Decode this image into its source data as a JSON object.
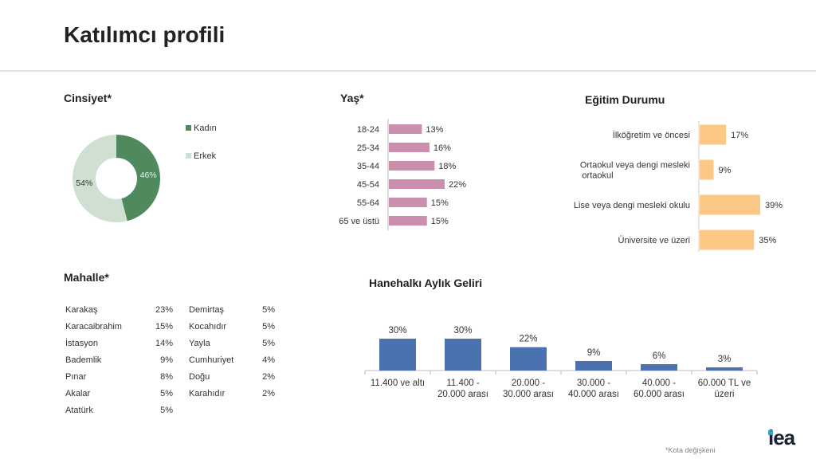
{
  "title": "Katılımcı profili",
  "footnote": "*Kota değişkeni",
  "logo": "iea",
  "colors": {
    "kadin": "#4f8a5f",
    "erkek": "#cfe0d2",
    "age_bar": "#c98fac",
    "edu_bar": "#fbc985",
    "income_bar": "#4a72b0"
  },
  "chart_data": [
    {
      "id": "cinsiyet",
      "type": "pie",
      "title": "Cinsiyet*",
      "labels": [
        "Kadın",
        "Erkek"
      ],
      "values": [
        46,
        54
      ],
      "value_labels": [
        "46%",
        "54%"
      ],
      "legend": "right"
    },
    {
      "id": "yas",
      "type": "bar",
      "orientation": "horizontal",
      "title": "Yaş*",
      "categories": [
        "18-24",
        "25-34",
        "35-44",
        "45-54",
        "55-64",
        "65 ve üstü"
      ],
      "values": [
        13,
        16,
        18,
        22,
        15,
        15
      ],
      "value_labels": [
        "13%",
        "16%",
        "18%",
        "22%",
        "15%",
        "15%"
      ]
    },
    {
      "id": "egitim",
      "type": "bar",
      "orientation": "horizontal",
      "title": "Eğitim Durumu",
      "categories": [
        "İlköğretim ve öncesi",
        "Ortaokul veya dengi mesleki ortaokul",
        "Lise veya dengi mesleki okulu",
        "Üniversite ve üzeri"
      ],
      "category_lines": [
        [
          "İlköğretim ve öncesi"
        ],
        [
          "Ortaokul veya dengi mesleki",
          "ortaokul"
        ],
        [
          "Lise veya dengi mesleki okulu"
        ],
        [
          "Üniversite ve üzeri"
        ]
      ],
      "values": [
        17,
        9,
        39,
        35
      ],
      "value_labels": [
        "17%",
        "9%",
        "39%",
        "35%"
      ]
    },
    {
      "id": "gelir",
      "type": "bar",
      "orientation": "vertical",
      "title": "Hanehalkı Aylık Geliri",
      "categories": [
        "11.400 ve altı",
        "11.400 - 20.000 arası",
        "20.000 - 30.000 arası",
        "30.000 - 40.000 arası",
        "40.000 - 60.000 arası",
        "60.000 TL ve üzeri"
      ],
      "category_lines": [
        [
          "11.400 ve altı"
        ],
        [
          "11.400 -",
          "20.000 arası"
        ],
        [
          "20.000 -",
          "30.000 arası"
        ],
        [
          "30.000 -",
          "40.000 arası"
        ],
        [
          "40.000 -",
          "60.000 arası"
        ],
        [
          "60.000 TL ve",
          "üzeri"
        ]
      ],
      "values": [
        30,
        30,
        22,
        9,
        6,
        3
      ],
      "value_labels": [
        "30%",
        "30%",
        "22%",
        "9%",
        "6%",
        "3%"
      ]
    },
    {
      "id": "mahalle",
      "type": "table",
      "title": "Mahalle*",
      "columns": [
        [
          {
            "name": "Karakaş",
            "pct": "23%"
          },
          {
            "name": "Karacaibrahim",
            "pct": "15%"
          },
          {
            "name": "İstasyon",
            "pct": "14%"
          },
          {
            "name": "Bademlik",
            "pct": "9%"
          },
          {
            "name": "Pınar",
            "pct": "8%"
          },
          {
            "name": "Akalar",
            "pct": "5%"
          },
          {
            "name": "Atatürk",
            "pct": "5%"
          }
        ],
        [
          {
            "name": "Demirtaş",
            "pct": "5%"
          },
          {
            "name": "Kocahıdır",
            "pct": "5%"
          },
          {
            "name": "Yayla",
            "pct": "5%"
          },
          {
            "name": "Cumhuriyet",
            "pct": "4%"
          },
          {
            "name": "Doğu",
            "pct": "2%"
          },
          {
            "name": "Karahıdır",
            "pct": "2%"
          }
        ]
      ]
    }
  ]
}
